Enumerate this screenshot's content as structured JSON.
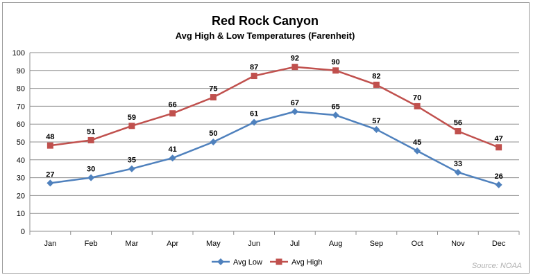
{
  "chart_data": {
    "type": "line",
    "title": "Red Rock Canyon",
    "subtitle": "Avg High & Low Temperatures  (Farenheit)",
    "categories": [
      "Jan",
      "Feb",
      "Mar",
      "Apr",
      "May",
      "Jun",
      "Jul",
      "Aug",
      "Sep",
      "Oct",
      "Nov",
      "Dec"
    ],
    "ylim": [
      0,
      100
    ],
    "yticks": [
      "0",
      "10",
      "20",
      "30",
      "40",
      "50",
      "60",
      "70",
      "80",
      "90",
      "100"
    ],
    "grid": true,
    "legend_position": "bottom",
    "source": "Source:   NOAA",
    "series": [
      {
        "name": "Avg Low",
        "color": "#4f81bd",
        "marker": "diamond",
        "values": [
          27,
          30,
          35,
          41,
          50,
          61,
          67,
          65,
          57,
          45,
          33,
          26
        ],
        "labels": [
          "27",
          "30",
          "35",
          "41",
          "50",
          "61",
          "67",
          "65",
          "57",
          "45",
          "33",
          "26"
        ]
      },
      {
        "name": "Avg High",
        "color": "#c0504d",
        "marker": "square",
        "values": [
          48,
          51,
          59,
          66,
          75,
          87,
          92,
          90,
          82,
          70,
          56,
          47
        ],
        "labels": [
          "48",
          "51",
          "59",
          "66",
          "75",
          "87",
          "92",
          "90",
          "82",
          "70",
          "56",
          "47"
        ]
      }
    ]
  }
}
